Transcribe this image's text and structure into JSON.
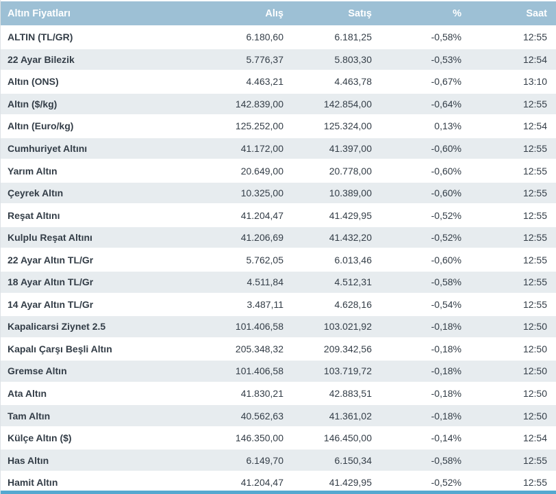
{
  "colors": {
    "header_bg": "#9dc0d5",
    "row_alt_bg": "#e7ecef",
    "text": "#333d47",
    "bottom_accent": "#55a8d0"
  },
  "table": {
    "header": {
      "name": "Altın Fiyatları",
      "buy": "Alış",
      "sell": "Satış",
      "percent": "%",
      "time": "Saat"
    },
    "rows": [
      {
        "name": "ALTIN (TL/GR)",
        "buy": "6.180,60",
        "sell": "6.181,25",
        "change": "-0,58%",
        "time": "12:55"
      },
      {
        "name": "22 Ayar Bilezik",
        "buy": "5.776,37",
        "sell": "5.803,30",
        "change": "-0,53%",
        "time": "12:54"
      },
      {
        "name": "Altın (ONS)",
        "buy": "4.463,21",
        "sell": "4.463,78",
        "change": "-0,67%",
        "time": "13:10"
      },
      {
        "name": "Altın ($/kg)",
        "buy": "142.839,00",
        "sell": "142.854,00",
        "change": "-0,64%",
        "time": "12:55"
      },
      {
        "name": "Altın (Euro/kg)",
        "buy": "125.252,00",
        "sell": "125.324,00",
        "change": "0,13%",
        "time": "12:54"
      },
      {
        "name": "Cumhuriyet Altını",
        "buy": "41.172,00",
        "sell": "41.397,00",
        "change": "-0,60%",
        "time": "12:55"
      },
      {
        "name": "Yarım Altın",
        "buy": "20.649,00",
        "sell": "20.778,00",
        "change": "-0,60%",
        "time": "12:55"
      },
      {
        "name": "Çeyrek Altın",
        "buy": "10.325,00",
        "sell": "10.389,00",
        "change": "-0,60%",
        "time": "12:55"
      },
      {
        "name": "Reşat Altını",
        "buy": "41.204,47",
        "sell": "41.429,95",
        "change": "-0,52%",
        "time": "12:55"
      },
      {
        "name": "Kulplu Reşat Altını",
        "buy": "41.206,69",
        "sell": "41.432,20",
        "change": "-0,52%",
        "time": "12:55"
      },
      {
        "name": "22 Ayar Altın TL/Gr",
        "buy": "5.762,05",
        "sell": "6.013,46",
        "change": "-0,60%",
        "time": "12:55"
      },
      {
        "name": "18 Ayar Altın TL/Gr",
        "buy": "4.511,84",
        "sell": "4.512,31",
        "change": "-0,58%",
        "time": "12:55"
      },
      {
        "name": "14 Ayar Altın TL/Gr",
        "buy": "3.487,11",
        "sell": "4.628,16",
        "change": "-0,54%",
        "time": "12:55"
      },
      {
        "name": "Kapalicarsi Ziynet 2.5",
        "buy": "101.406,58",
        "sell": "103.021,92",
        "change": "-0,18%",
        "time": "12:50"
      },
      {
        "name": "Kapalı Çarşı Beşli Altın",
        "buy": "205.348,32",
        "sell": "209.342,56",
        "change": "-0,18%",
        "time": "12:50"
      },
      {
        "name": "Gremse Altın",
        "buy": "101.406,58",
        "sell": "103.719,72",
        "change": "-0,18%",
        "time": "12:50"
      },
      {
        "name": "Ata Altın",
        "buy": "41.830,21",
        "sell": "42.883,51",
        "change": "-0,18%",
        "time": "12:50"
      },
      {
        "name": "Tam Altın",
        "buy": "40.562,63",
        "sell": "41.361,02",
        "change": "-0,18%",
        "time": "12:50"
      },
      {
        "name": "Külçe Altın ($)",
        "buy": "146.350,00",
        "sell": "146.450,00",
        "change": "-0,14%",
        "time": "12:54"
      },
      {
        "name": "Has Altın",
        "buy": "6.149,70",
        "sell": "6.150,34",
        "change": "-0,58%",
        "time": "12:55"
      },
      {
        "name": "Hamit Altın",
        "buy": "41.204,47",
        "sell": "41.429,95",
        "change": "-0,52%",
        "time": "12:55"
      }
    ]
  }
}
